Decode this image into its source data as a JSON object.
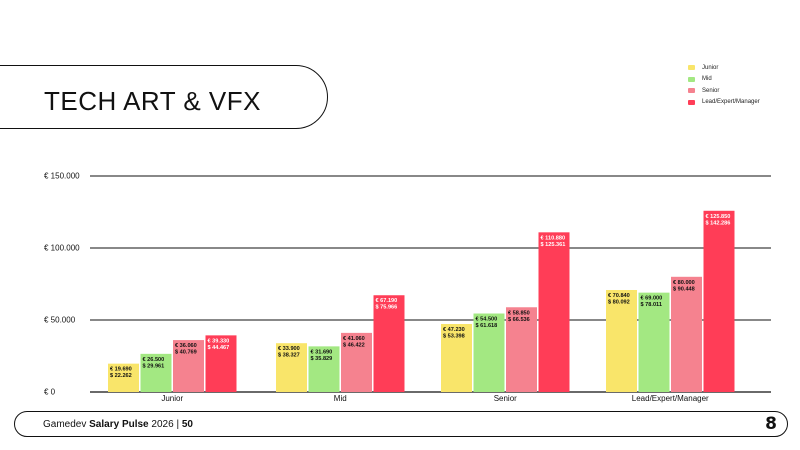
{
  "page_title": "TECH ART & VFX",
  "footer": {
    "brand": "Gamedev",
    "product": "Salary Pulse",
    "year": "2026",
    "separator": "|",
    "page_number": "50",
    "logo_glyph": "8"
  },
  "colors": {
    "Junior": "#f9e56a",
    "Mid": "#a3e882",
    "Senior": "#f5828f",
    "Lead/Expert/Manager": "#ff3d57"
  },
  "chart_data": {
    "type": "bar",
    "categories": [
      "Junior",
      "Mid",
      "Senior",
      "Lead/Expert/Manager"
    ],
    "ylim": [
      0,
      150000
    ],
    "yticks": [
      0,
      50000,
      100000,
      150000
    ],
    "ytick_labels": [
      "€ 0",
      "€ 50.000",
      "€ 100.000",
      "€ 150.000"
    ],
    "legend_position": "top-right",
    "series": [
      {
        "name": "Junior",
        "values": [
          19690,
          33900,
          47230,
          70840
        ],
        "labels_eur": [
          "€ 19.690",
          "€ 33.900",
          "€ 47.230",
          "€ 70.840"
        ],
        "labels_usd": [
          "$ 22.262",
          "$ 38.327",
          "$ 53.398",
          "$ 80.092"
        ]
      },
      {
        "name": "Mid",
        "values": [
          26500,
          31690,
          54500,
          69000
        ],
        "labels_eur": [
          "€ 26.500",
          "€ 31.690",
          "€ 54.500",
          "€ 69.000"
        ],
        "labels_usd": [
          "$ 29.961",
          "$ 35.829",
          "$ 61.618",
          "$ 78.011"
        ]
      },
      {
        "name": "Senior",
        "values": [
          36060,
          41060,
          58850,
          80000
        ],
        "labels_eur": [
          "€ 36.060",
          "€ 41.060",
          "€ 58.850",
          "€ 80.000"
        ],
        "labels_usd": [
          "$ 40.769",
          "$ 46.422",
          "$ 66.536",
          "$ 90.448"
        ]
      },
      {
        "name": "Lead/Expert/Manager",
        "values": [
          39330,
          67190,
          110880,
          125850
        ],
        "labels_eur": [
          "€ 39.330",
          "€ 67.190",
          "€ 110.880",
          "€ 125.850"
        ],
        "labels_usd": [
          "$ 44.467",
          "$ 75.966",
          "$ 125.361",
          "$ 142.286"
        ]
      }
    ]
  }
}
